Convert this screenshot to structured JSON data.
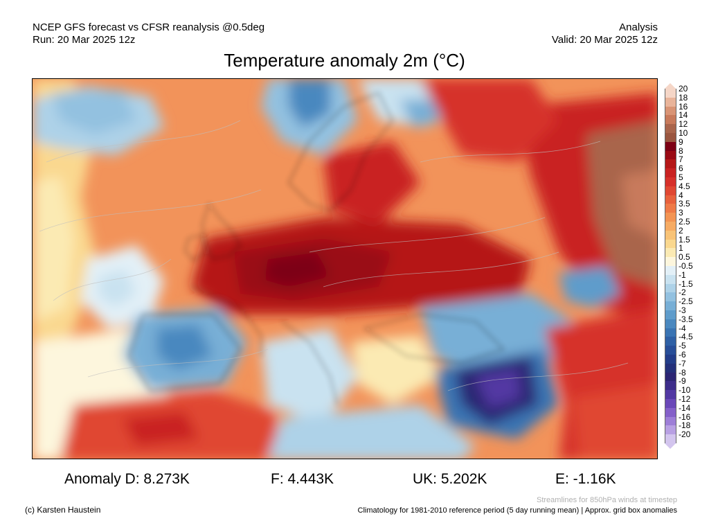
{
  "header": {
    "model_line": "NCEP GFS forecast vs CFSR reanalysis @0.5deg",
    "run_line": "Run: 20 Mar 2025 12z",
    "mode": "Analysis",
    "valid_line": "Valid: 20 Mar 2025 12z"
  },
  "title": "Temperature anomaly 2m (°C)",
  "legend": {
    "labels": [
      "20",
      "18",
      "16",
      "14",
      "12",
      "10",
      "9",
      "8",
      "7",
      "6",
      "5",
      "4.5",
      "4",
      "3.5",
      "3",
      "2.5",
      "2",
      "1.5",
      "1",
      "0.5",
      "-0.5",
      "-1",
      "-1.5",
      "-2",
      "-2.5",
      "-3",
      "-3.5",
      "-4",
      "-4.5",
      "-5",
      "-6",
      "-7",
      "-8",
      "-9",
      "-10",
      "-12",
      "-14",
      "-16",
      "-18",
      "-20"
    ],
    "colors": [
      "#f5d6c7",
      "#e9b49a",
      "#d99475",
      "#c87a5b",
      "#a9654c",
      "#9a5640",
      "#7d0014",
      "#9a0a14",
      "#b51818",
      "#c92222",
      "#d6302a",
      "#e04732",
      "#e8613c",
      "#ef7a47",
      "#f39453",
      "#f6ab63",
      "#f8c377",
      "#fad88f",
      "#fbeab3",
      "#fdf6dd",
      "#e3f0f7",
      "#c9e2f0",
      "#aed2e8",
      "#93c1e0",
      "#78afd6",
      "#5f9ccb",
      "#4a88bf",
      "#3a74b3",
      "#2f60a5",
      "#284e98",
      "#233d89",
      "#24307a",
      "#2c2573",
      "#3d2d8a",
      "#5238a3",
      "#6a48b8",
      "#8460c9",
      "#9d7ed7",
      "#b8a0e3",
      "#d3c5ee"
    ]
  },
  "stats": {
    "germany": "Anomaly D: 8.273K",
    "france": "F: 4.443K",
    "uk": "UK: 5.202K",
    "spain": "E: -1.16K"
  },
  "footer": {
    "streamlines_note": "Streamlines for 850hPa winds at timestep",
    "credit": "(c) Karsten Haustein",
    "climatology_note": "Climatology for 1981-2010 reference period (5 day running mean) | Approx. grid box anomalies"
  }
}
